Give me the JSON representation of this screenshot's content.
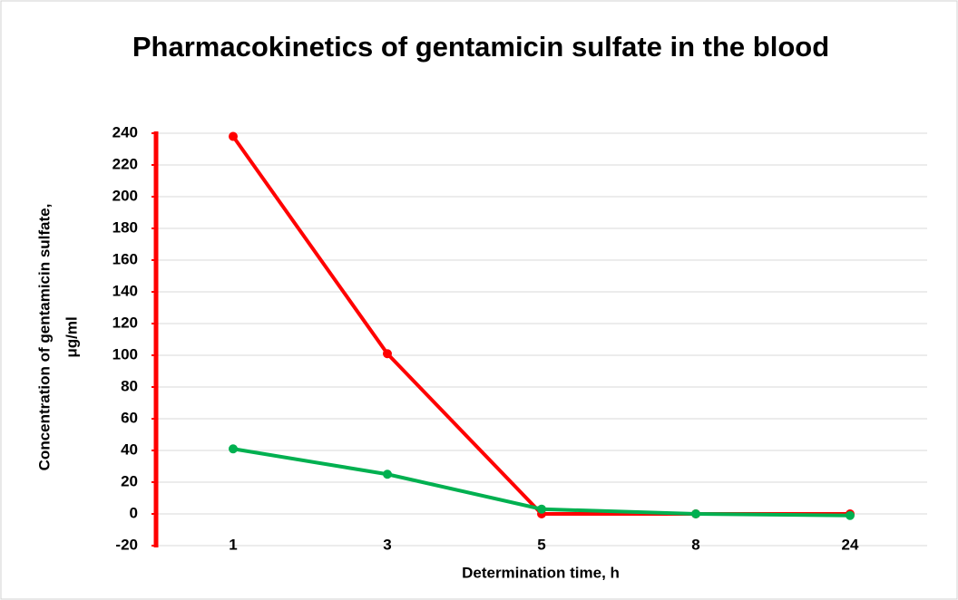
{
  "chart_data": {
    "type": "line",
    "title": "Pharmacokinetics of gentamicin sulfate in the blood",
    "xlabel": "Determination time, h",
    "ylabel": [
      "Concentration of gentamicin sulfate,",
      "μg/ml"
    ],
    "categories": [
      "1",
      "3",
      "5",
      "8",
      "24"
    ],
    "series": [
      {
        "color": "#ff0000",
        "values": [
          238,
          101,
          0,
          0,
          0
        ]
      },
      {
        "color": "#00b050",
        "values": [
          41,
          25,
          3,
          0,
          -1
        ]
      }
    ],
    "ylim": [
      -20,
      240
    ],
    "yticks": [
      -20,
      0,
      20,
      40,
      60,
      80,
      100,
      120,
      140,
      160,
      180,
      200,
      220,
      240
    ],
    "grid": true,
    "axis_color": "#ff0000"
  }
}
